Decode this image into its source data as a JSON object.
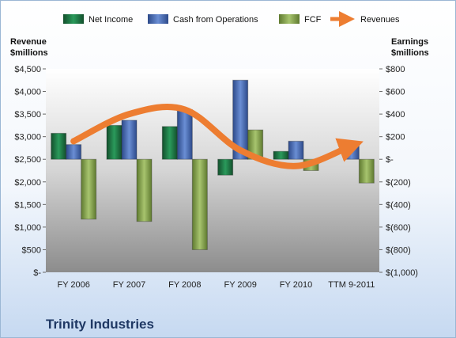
{
  "chart_data": {
    "type": "bar",
    "title": "Trinity Industries",
    "categories": [
      "FY 2006",
      "FY 2007",
      "FY 2008",
      "FY 2009",
      "FY 2010",
      "TTM 9-2011"
    ],
    "y_left": {
      "title_line1": "Revenue",
      "title_line2": "$millions",
      "range": [
        0,
        4500
      ],
      "ticks": [
        0,
        500,
        1000,
        1500,
        2000,
        2500,
        3000,
        3500,
        4000,
        4500
      ],
      "tick_labels": [
        "$-",
        "$500",
        "$1,000",
        "$1,500",
        "$2,000",
        "$2,500",
        "$3,000",
        "$3,500",
        "$4,000",
        "$4,500"
      ]
    },
    "y_right": {
      "title_line1": "Earnings",
      "title_line2": "$millions",
      "range": [
        -1000,
        800
      ],
      "ticks": [
        -1000,
        -800,
        -600,
        -400,
        -200,
        0,
        200,
        400,
        600,
        800
      ],
      "tick_labels": [
        "$(1,000)",
        "$(800)",
        "$(600)",
        "$(400)",
        "$(200)",
        "$-",
        "$200",
        "$400",
        "$600",
        "$800"
      ]
    },
    "series": [
      {
        "name": "Net Income",
        "axis": "right",
        "kind": "bar",
        "color": "#1e7b46",
        "values": [
          230,
          300,
          290,
          -140,
          70,
          0
        ]
      },
      {
        "name": "Cash from Operations",
        "axis": "right",
        "kind": "bar",
        "color": "#4a6eb8",
        "values": [
          130,
          345,
          440,
          700,
          160,
          130
        ]
      },
      {
        "name": "FCF",
        "axis": "right",
        "kind": "bar",
        "color": "#8aaa52",
        "values": [
          -530,
          -550,
          -800,
          260,
          -100,
          -210
        ]
      },
      {
        "name": "Revenues",
        "axis": "left",
        "kind": "line",
        "color": "#ed7d31",
        "values": [
          2900,
          3500,
          3600,
          2700,
          2350,
          2800
        ]
      }
    ],
    "legend_position": "top",
    "grid": false
  }
}
